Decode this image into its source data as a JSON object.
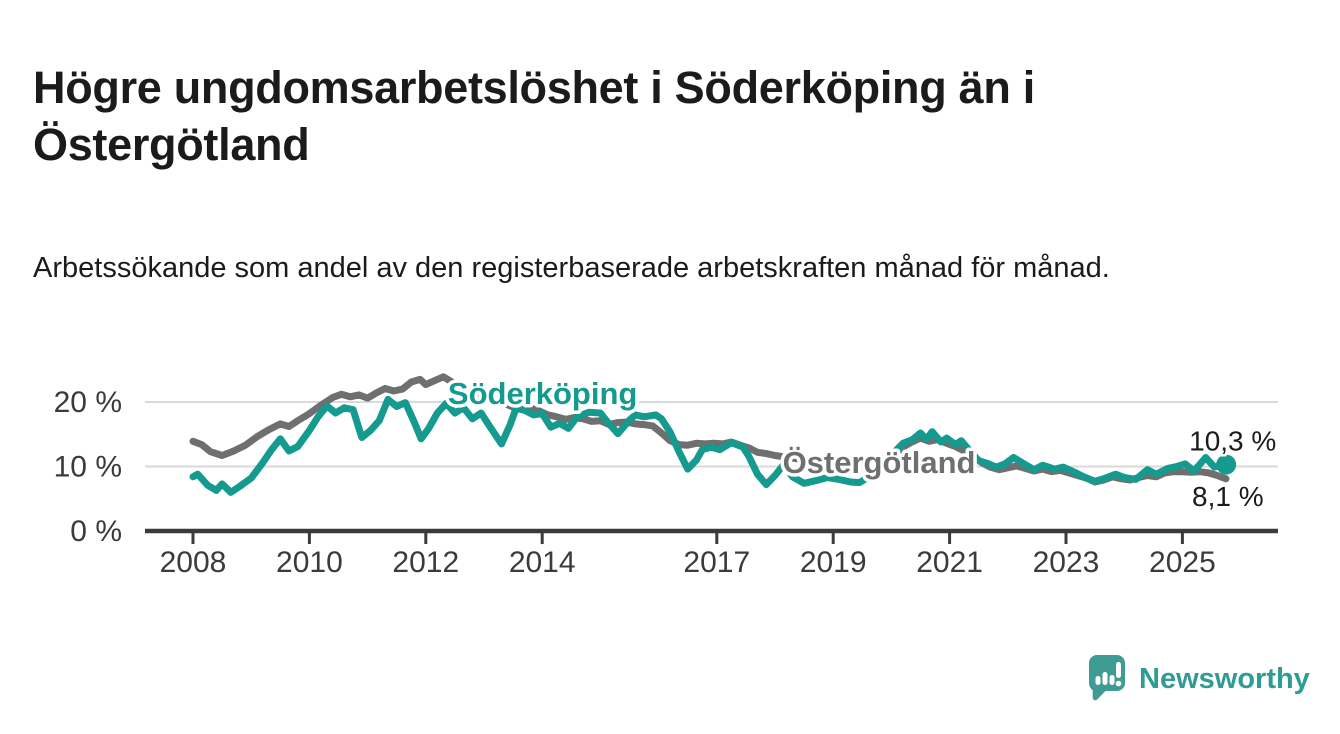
{
  "header": {
    "title": "Högre ungdomsarbetslöshet i Söderköping än i Östergötland",
    "subtitle": "Arbetssökande som andel av den registerbaserade arbetskraften månad för månad."
  },
  "footer": {
    "brand": "Newsworthy",
    "logo_icon": "newsworthy-speech-bubble-chart-icon"
  },
  "colors": {
    "soderkoping": "#149a8e",
    "ostergotland": "#6f6f6f",
    "gridline": "#dadada",
    "axis": "#3b3b3b",
    "tick_label": "#3b3b3b",
    "text": "#1b1b1b",
    "brand_teal": "#2f9c93"
  },
  "chart_data": {
    "type": "line",
    "unit": "percent of registered labour force",
    "x_range": [
      2007.2,
      2026.6
    ],
    "y_range": [
      0,
      25
    ],
    "grid": "horizontal",
    "legend_position": "inline-labels",
    "x_ticks": [
      {
        "value": 2008,
        "label": "2008"
      },
      {
        "value": 2010,
        "label": "2010"
      },
      {
        "value": 2012,
        "label": "2012"
      },
      {
        "value": 2014,
        "label": "2014"
      },
      {
        "value": 2017,
        "label": "2017"
      },
      {
        "value": 2019,
        "label": "2019"
      },
      {
        "value": 2021,
        "label": "2021"
      },
      {
        "value": 2023,
        "label": "2023"
      },
      {
        "value": 2025,
        "label": "2025"
      }
    ],
    "y_ticks": [
      {
        "value": 0,
        "label": "0 %"
      },
      {
        "value": 10,
        "label": "10 %"
      },
      {
        "value": 20,
        "label": "20 %"
      }
    ],
    "annotations": [
      {
        "id": "soderkoping",
        "text": "Söderköping",
        "x": 2012.38,
        "y": 19.7,
        "color": "#149a8e"
      },
      {
        "id": "ostergotland",
        "text": "Östergötland",
        "x": 2018.13,
        "y": 9.0,
        "color": "#6f6f6f"
      }
    ],
    "series": [
      {
        "id": "ostergotland",
        "name": "Östergötland",
        "color": "#6f6f6f",
        "end_label": "8,1 %",
        "end_value": 8.1,
        "end_dot": false,
        "points": [
          [
            2008.0,
            13.9
          ],
          [
            2008.15,
            13.4
          ],
          [
            2008.3,
            12.3
          ],
          [
            2008.5,
            11.7
          ],
          [
            2008.7,
            12.4
          ],
          [
            2008.9,
            13.3
          ],
          [
            2009.1,
            14.6
          ],
          [
            2009.3,
            15.7
          ],
          [
            2009.5,
            16.6
          ],
          [
            2009.65,
            16.2
          ],
          [
            2009.8,
            17.1
          ],
          [
            2010.0,
            18.2
          ],
          [
            2010.2,
            19.5
          ],
          [
            2010.4,
            20.7
          ],
          [
            2010.55,
            21.2
          ],
          [
            2010.7,
            20.8
          ],
          [
            2010.85,
            21.1
          ],
          [
            2011.0,
            20.6
          ],
          [
            2011.15,
            21.4
          ],
          [
            2011.3,
            22.1
          ],
          [
            2011.45,
            21.7
          ],
          [
            2011.6,
            22.0
          ],
          [
            2011.75,
            23.1
          ],
          [
            2011.9,
            23.5
          ],
          [
            2012.0,
            22.7
          ],
          [
            2012.15,
            23.3
          ],
          [
            2012.3,
            23.9
          ],
          [
            2012.45,
            23.1
          ],
          [
            2012.6,
            22.1
          ],
          [
            2012.75,
            21.8
          ],
          [
            2012.9,
            21.3
          ],
          [
            2013.05,
            21.0
          ],
          [
            2013.2,
            20.4
          ],
          [
            2013.35,
            19.8
          ],
          [
            2013.5,
            19.2
          ],
          [
            2013.65,
            18.9
          ],
          [
            2013.8,
            19.1
          ],
          [
            2013.95,
            18.6
          ],
          [
            2014.1,
            18.0
          ],
          [
            2014.25,
            17.7
          ],
          [
            2014.4,
            17.3
          ],
          [
            2014.55,
            17.6
          ],
          [
            2014.7,
            17.4
          ],
          [
            2014.85,
            17.0
          ],
          [
            2015.0,
            17.1
          ],
          [
            2015.15,
            16.5
          ],
          [
            2015.3,
            16.8
          ],
          [
            2015.45,
            16.9
          ],
          [
            2015.6,
            16.6
          ],
          [
            2015.75,
            16.5
          ],
          [
            2015.9,
            16.3
          ],
          [
            2016.05,
            15.2
          ],
          [
            2016.2,
            14.0
          ],
          [
            2016.35,
            13.4
          ],
          [
            2016.5,
            13.3
          ],
          [
            2016.65,
            13.6
          ],
          [
            2016.8,
            13.5
          ],
          [
            2016.95,
            13.6
          ],
          [
            2017.1,
            13.5
          ],
          [
            2017.25,
            13.8
          ],
          [
            2017.4,
            13.3
          ],
          [
            2017.55,
            12.9
          ],
          [
            2017.7,
            12.2
          ],
          [
            2017.85,
            12.0
          ],
          [
            2018.0,
            11.7
          ],
          [
            2018.15,
            11.5
          ],
          [
            2018.3,
            11.3
          ],
          [
            2018.5,
            11.0
          ],
          [
            2018.7,
            10.8
          ],
          [
            2018.9,
            10.7
          ],
          [
            2019.1,
            10.5
          ],
          [
            2019.3,
            10.4
          ],
          [
            2019.5,
            10.3
          ],
          [
            2019.7,
            10.4
          ],
          [
            2019.9,
            10.8
          ],
          [
            2020.05,
            11.8
          ],
          [
            2020.2,
            13.0
          ],
          [
            2020.35,
            13.8
          ],
          [
            2020.5,
            14.4
          ],
          [
            2020.65,
            13.9
          ],
          [
            2020.8,
            14.2
          ],
          [
            2020.95,
            13.6
          ],
          [
            2021.1,
            13.1
          ],
          [
            2021.25,
            12.4
          ],
          [
            2021.4,
            11.6
          ],
          [
            2021.55,
            10.6
          ],
          [
            2021.7,
            9.9
          ],
          [
            2021.85,
            9.5
          ],
          [
            2022.0,
            9.8
          ],
          [
            2022.15,
            10.1
          ],
          [
            2022.3,
            9.7
          ],
          [
            2022.45,
            9.3
          ],
          [
            2022.6,
            9.6
          ],
          [
            2022.75,
            9.2
          ],
          [
            2022.9,
            9.4
          ],
          [
            2023.05,
            9.0
          ],
          [
            2023.2,
            8.6
          ],
          [
            2023.35,
            8.2
          ],
          [
            2023.5,
            7.6
          ],
          [
            2023.65,
            7.9
          ],
          [
            2023.8,
            8.4
          ],
          [
            2023.95,
            8.1
          ],
          [
            2024.1,
            7.9
          ],
          [
            2024.25,
            8.3
          ],
          [
            2024.4,
            8.6
          ],
          [
            2024.55,
            8.4
          ],
          [
            2024.7,
            9.0
          ],
          [
            2024.85,
            9.2
          ],
          [
            2025.0,
            9.2
          ],
          [
            2025.15,
            9.1
          ],
          [
            2025.3,
            9.2
          ],
          [
            2025.45,
            9.0
          ],
          [
            2025.6,
            8.6
          ],
          [
            2025.75,
            8.1
          ]
        ]
      },
      {
        "id": "soderkoping",
        "name": "Söderköping",
        "color": "#149a8e",
        "end_label": "10,3 %",
        "end_value": 10.3,
        "end_dot": true,
        "points": [
          [
            2008.0,
            8.4
          ],
          [
            2008.08,
            8.8
          ],
          [
            2008.25,
            7.1
          ],
          [
            2008.4,
            6.3
          ],
          [
            2008.5,
            7.3
          ],
          [
            2008.65,
            6.0
          ],
          [
            2008.8,
            6.9
          ],
          [
            2009.0,
            8.2
          ],
          [
            2009.2,
            10.6
          ],
          [
            2009.35,
            12.6
          ],
          [
            2009.5,
            14.3
          ],
          [
            2009.65,
            12.4
          ],
          [
            2009.8,
            13.1
          ],
          [
            2010.0,
            15.6
          ],
          [
            2010.15,
            17.7
          ],
          [
            2010.3,
            19.4
          ],
          [
            2010.45,
            18.3
          ],
          [
            2010.6,
            19.1
          ],
          [
            2010.75,
            18.8
          ],
          [
            2010.9,
            14.5
          ],
          [
            2011.05,
            15.6
          ],
          [
            2011.2,
            17.1
          ],
          [
            2011.35,
            20.4
          ],
          [
            2011.5,
            19.3
          ],
          [
            2011.65,
            19.9
          ],
          [
            2011.8,
            16.9
          ],
          [
            2011.92,
            14.3
          ],
          [
            2012.05,
            15.9
          ],
          [
            2012.2,
            18.3
          ],
          [
            2012.35,
            19.8
          ],
          [
            2012.5,
            18.3
          ],
          [
            2012.65,
            19.1
          ],
          [
            2012.8,
            17.4
          ],
          [
            2012.95,
            18.3
          ],
          [
            2013.1,
            16.2
          ],
          [
            2013.3,
            13.5
          ],
          [
            2013.45,
            16.5
          ],
          [
            2013.55,
            19.0
          ],
          [
            2013.7,
            18.7
          ],
          [
            2013.85,
            18.0
          ],
          [
            2014.0,
            18.2
          ],
          [
            2014.15,
            16.1
          ],
          [
            2014.3,
            16.7
          ],
          [
            2014.45,
            15.9
          ],
          [
            2014.6,
            17.7
          ],
          [
            2014.8,
            18.4
          ],
          [
            2015.0,
            18.3
          ],
          [
            2015.15,
            16.6
          ],
          [
            2015.3,
            15.1
          ],
          [
            2015.5,
            17.2
          ],
          [
            2015.6,
            18.0
          ],
          [
            2015.75,
            17.7
          ],
          [
            2015.95,
            18.0
          ],
          [
            2016.05,
            17.4
          ],
          [
            2016.2,
            15.3
          ],
          [
            2016.35,
            12.3
          ],
          [
            2016.5,
            9.6
          ],
          [
            2016.65,
            11.0
          ],
          [
            2016.75,
            12.6
          ],
          [
            2016.9,
            13.0
          ],
          [
            2017.05,
            12.6
          ],
          [
            2017.25,
            13.7
          ],
          [
            2017.45,
            13.0
          ],
          [
            2017.55,
            11.6
          ],
          [
            2017.7,
            8.8
          ],
          [
            2017.85,
            7.2
          ],
          [
            2018.0,
            8.6
          ],
          [
            2018.15,
            10.3
          ],
          [
            2018.3,
            8.4
          ],
          [
            2018.5,
            7.4
          ],
          [
            2018.7,
            7.8
          ],
          [
            2018.9,
            8.3
          ],
          [
            2019.1,
            8.0
          ],
          [
            2019.3,
            7.6
          ],
          [
            2019.45,
            7.5
          ],
          [
            2019.6,
            8.3
          ],
          [
            2019.75,
            9.6
          ],
          [
            2019.9,
            11.0
          ],
          [
            2020.05,
            12.2
          ],
          [
            2020.2,
            13.6
          ],
          [
            2020.35,
            14.1
          ],
          [
            2020.5,
            15.2
          ],
          [
            2020.6,
            14.2
          ],
          [
            2020.7,
            15.4
          ],
          [
            2020.85,
            13.8
          ],
          [
            2020.95,
            14.4
          ],
          [
            2021.1,
            13.4
          ],
          [
            2021.2,
            14.0
          ],
          [
            2021.35,
            12.4
          ],
          [
            2021.5,
            10.9
          ],
          [
            2021.65,
            10.5
          ],
          [
            2021.8,
            9.9
          ],
          [
            2021.95,
            10.4
          ],
          [
            2022.1,
            11.4
          ],
          [
            2022.3,
            10.3
          ],
          [
            2022.45,
            9.5
          ],
          [
            2022.6,
            10.2
          ],
          [
            2022.8,
            9.6
          ],
          [
            2022.95,
            9.9
          ],
          [
            2023.15,
            9.1
          ],
          [
            2023.3,
            8.4
          ],
          [
            2023.5,
            7.7
          ],
          [
            2023.65,
            8.1
          ],
          [
            2023.85,
            8.8
          ],
          [
            2024.0,
            8.3
          ],
          [
            2024.2,
            8.0
          ],
          [
            2024.4,
            9.5
          ],
          [
            2024.55,
            8.8
          ],
          [
            2024.75,
            9.7
          ],
          [
            2024.9,
            10.0
          ],
          [
            2025.05,
            10.4
          ],
          [
            2025.2,
            9.3
          ],
          [
            2025.4,
            11.4
          ],
          [
            2025.55,
            9.9
          ],
          [
            2025.7,
            10.3
          ]
        ]
      }
    ]
  }
}
